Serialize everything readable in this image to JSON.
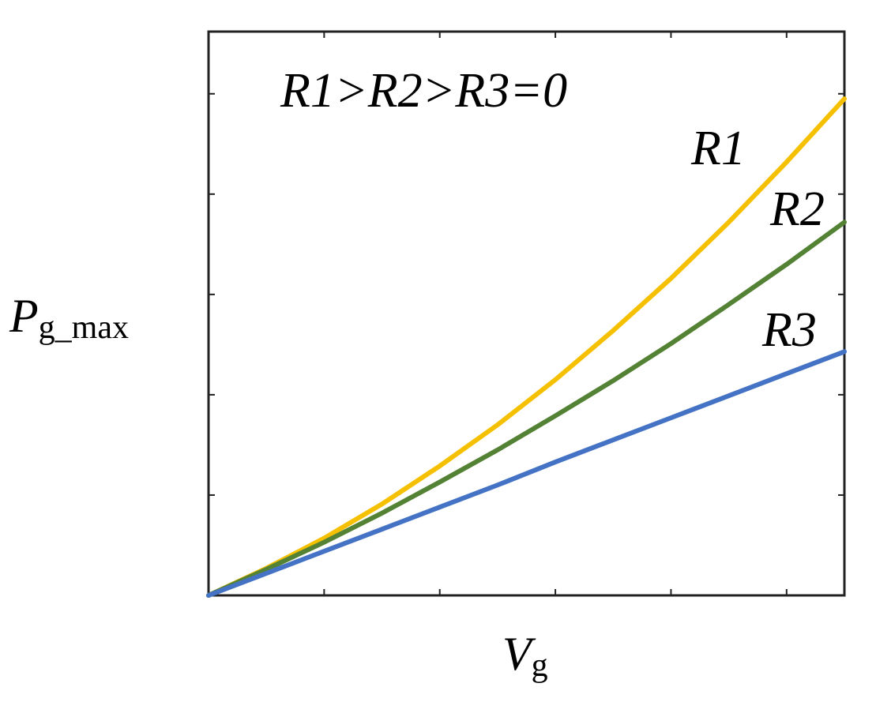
{
  "chart_data": {
    "type": "line",
    "annotation": "R1>R2>R3=0",
    "x_label": {
      "symbol": "V",
      "subscript": "g"
    },
    "y_label": {
      "symbol": "P",
      "subscript": "g_max"
    },
    "x": [
      0,
      0.5,
      1,
      1.5,
      2,
      2.5,
      3,
      3.5,
      4,
      4.5,
      5,
      5.5
    ],
    "series": [
      {
        "name": "R1",
        "color": "#f5c000",
        "values": [
          0,
          0.27,
          0.57,
          0.91,
          1.29,
          1.7,
          2.15,
          2.64,
          3.16,
          3.72,
          4.32,
          4.95
        ]
      },
      {
        "name": "R2",
        "color": "#548235",
        "values": [
          0,
          0.26,
          0.53,
          0.82,
          1.13,
          1.45,
          1.79,
          2.14,
          2.51,
          2.9,
          3.3,
          3.72
        ]
      },
      {
        "name": "R3",
        "color": "#4472c4",
        "values": [
          0,
          0.22,
          0.44,
          0.66,
          0.88,
          1.1,
          1.33,
          1.55,
          1.77,
          1.99,
          2.21,
          2.43
        ]
      }
    ],
    "xlim": [
      0,
      5.5
    ],
    "ylim": [
      0,
      5.62
    ],
    "xticks": [
      1,
      2,
      3,
      4,
      5
    ],
    "yticks": [
      1,
      2,
      3,
      4,
      5
    ]
  }
}
